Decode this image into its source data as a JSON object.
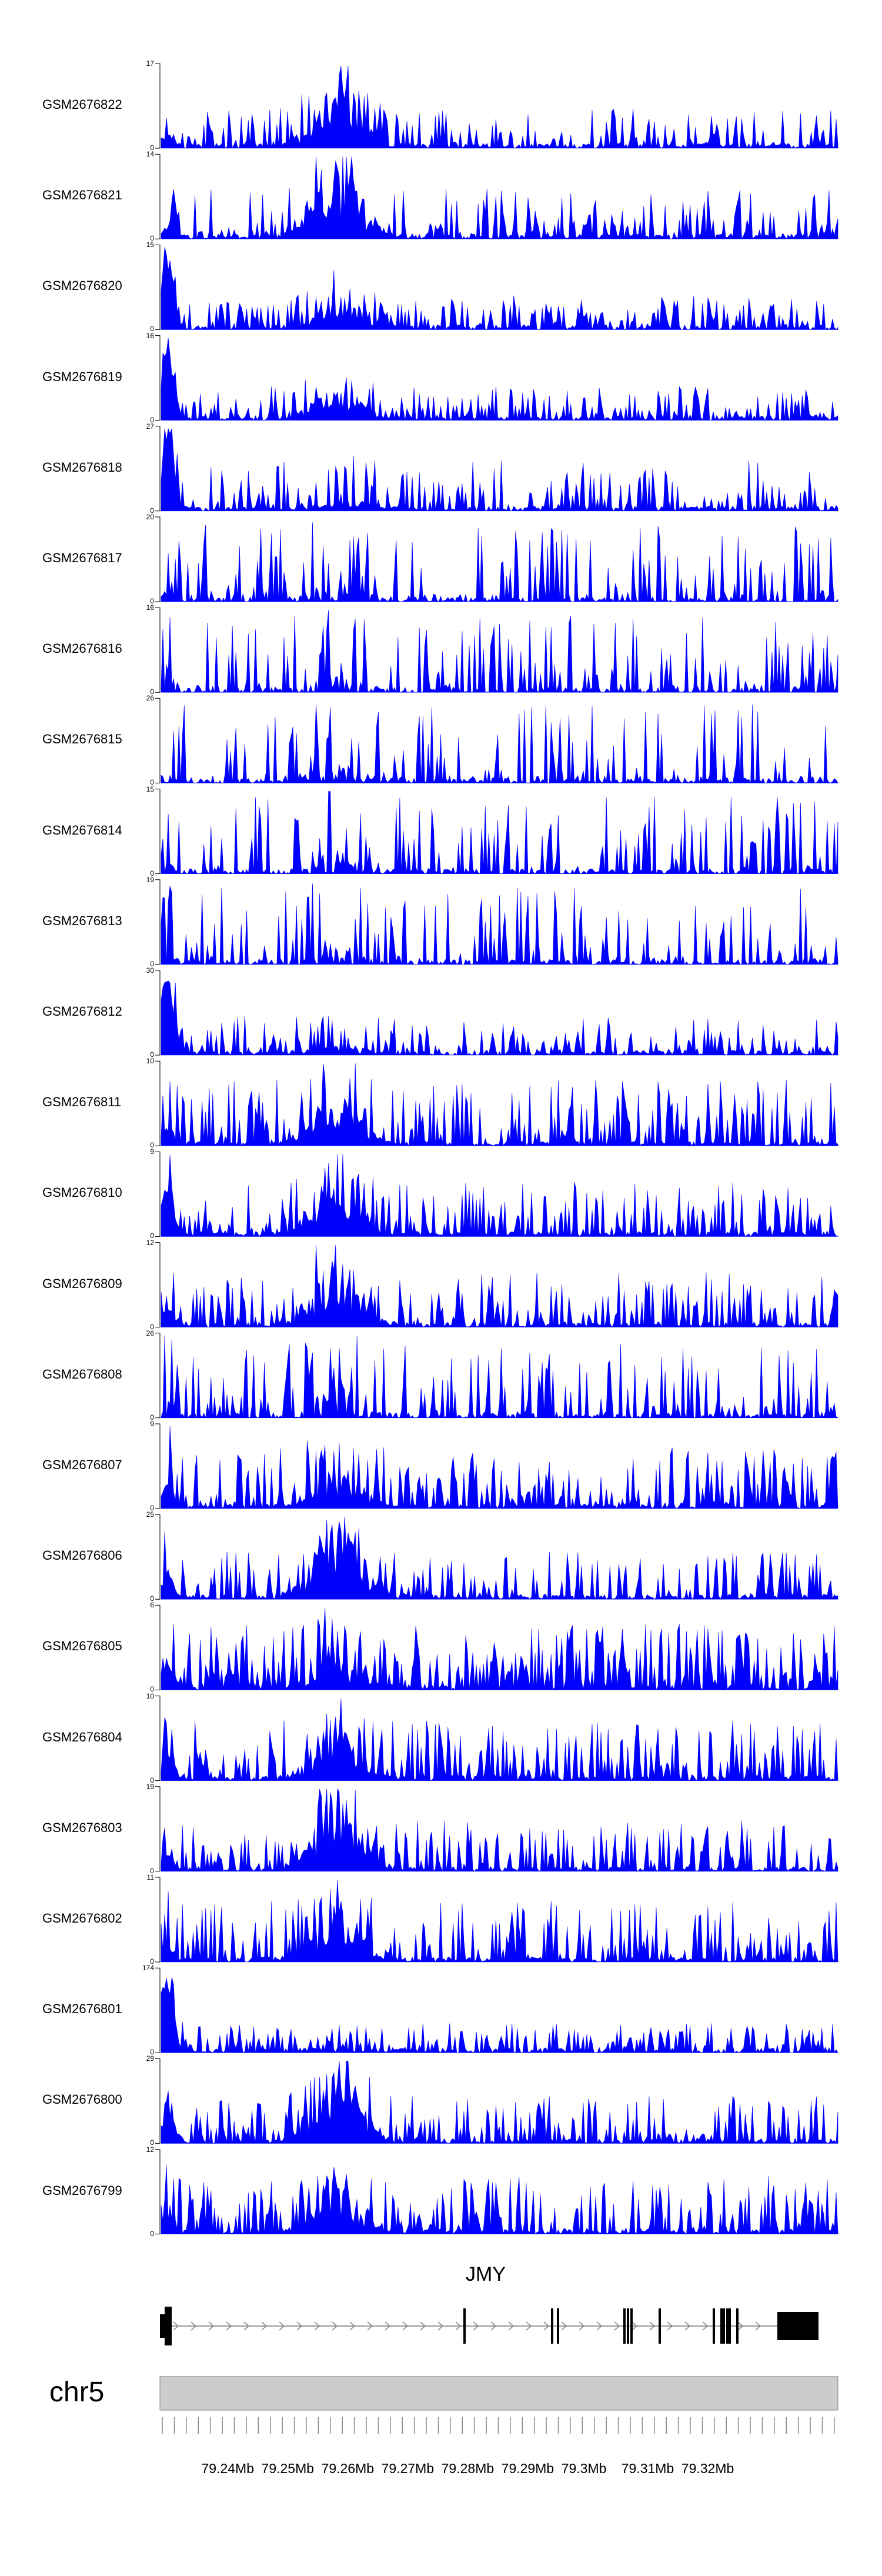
{
  "chart_data": {
    "type": "area",
    "title": "",
    "chromosome": "chr5",
    "gene": {
      "name": "JMY",
      "strand": "+"
    },
    "x_range_mb": [
      79.2326,
      79.3456
    ],
    "x_ticks_mb": [
      "79.24Mb",
      "79.25Mb",
      "79.26Mb",
      "79.27Mb",
      "79.28Mb",
      "79.29Mb",
      "79.3Mb",
      "79.31Mb",
      "79.32Mb"
    ],
    "tracks": [
      {
        "name": "GSM2676822",
        "max": "17",
        "fill_color": "#0000ff"
      },
      {
        "name": "GSM2676821",
        "max": "14",
        "fill_color": "#0000ff"
      },
      {
        "name": "GSM2676820",
        "max": "15",
        "fill_color": "#0000ff"
      },
      {
        "name": "GSM2676819",
        "max": "16",
        "fill_color": "#0000ff"
      },
      {
        "name": "GSM2676818",
        "max": "27",
        "fill_color": "#0000ff"
      },
      {
        "name": "GSM2676817",
        "max": "20",
        "fill_color": "#0000ff"
      },
      {
        "name": "GSM2676816",
        "max": "16",
        "fill_color": "#0000ff"
      },
      {
        "name": "GSM2676815",
        "max": "26",
        "fill_color": "#0000ff"
      },
      {
        "name": "GSM2676814",
        "max": "15",
        "fill_color": "#0000ff"
      },
      {
        "name": "GSM2676813",
        "max": "19",
        "fill_color": "#0000ff"
      },
      {
        "name": "GSM2676812",
        "max": "30",
        "fill_color": "#0000ff"
      },
      {
        "name": "GSM2676811",
        "max": "10",
        "fill_color": "#0000ff"
      },
      {
        "name": "GSM2676810",
        "max": "9",
        "fill_color": "#0000ff"
      },
      {
        "name": "GSM2676809",
        "max": "12",
        "fill_color": "#0000ff"
      },
      {
        "name": "GSM2676808",
        "max": "26",
        "fill_color": "#0000ff"
      },
      {
        "name": "GSM2676807",
        "max": "9",
        "fill_color": "#0000ff"
      },
      {
        "name": "GSM2676806",
        "max": "25",
        "fill_color": "#0000ff"
      },
      {
        "name": "GSM2676805",
        "max": "6",
        "fill_color": "#0000ff"
      },
      {
        "name": "GSM2676804",
        "max": "10",
        "fill_color": "#0000ff"
      },
      {
        "name": "GSM2676803",
        "max": "19",
        "fill_color": "#0000ff"
      },
      {
        "name": "GSM2676802",
        "max": "11",
        "fill_color": "#0000ff"
      },
      {
        "name": "GSM2676801",
        "max": "174",
        "fill_color": "#0000ff"
      },
      {
        "name": "GSM2676800",
        "max": "29",
        "fill_color": "#0000ff"
      },
      {
        "name": "GSM2676799",
        "max": "12",
        "fill_color": "#0000ff"
      }
    ],
    "track_min": "0"
  }
}
